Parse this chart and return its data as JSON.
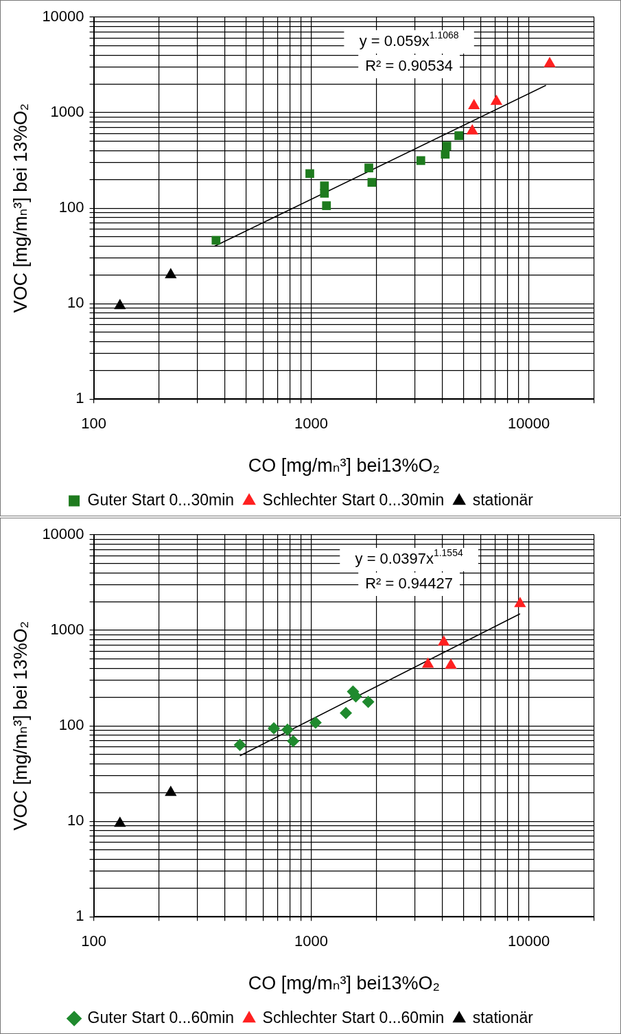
{
  "chart_data": [
    {
      "type": "scatter",
      "xlabel": "CO [mg/mₙ³] bei13%O₂",
      "ylabel": "VOC [mg/mₙ³] bei 13%O₂",
      "log": "xy",
      "grid": true,
      "legend": "bottom",
      "xlim": [
        100,
        20000
      ],
      "ylim": [
        1,
        10000
      ],
      "xticks": [
        100,
        {
          "value": 200,
          "label": null
        },
        {
          "value": 300,
          "label": null
        },
        {
          "value": 400,
          "label": null
        },
        {
          "value": 500,
          "label": null
        },
        {
          "value": 600,
          "label": null
        },
        {
          "value": 700,
          "label": null
        },
        {
          "value": 800,
          "label": null
        },
        {
          "value": 900,
          "label": null
        },
        1000,
        {
          "value": 2000,
          "label": null
        },
        {
          "value": 3000,
          "label": null
        },
        {
          "value": 4000,
          "label": null
        },
        {
          "value": 5000,
          "label": null
        },
        {
          "value": 6000,
          "label": null
        },
        {
          "value": 7000,
          "label": null
        },
        {
          "value": 8000,
          "label": null
        },
        {
          "value": 9000,
          "label": null
        },
        10000,
        {
          "value": 20000,
          "label": null
        }
      ],
      "yticks": [
        1,
        {
          "value": 2,
          "label": null
        },
        {
          "value": 3,
          "label": null
        },
        {
          "value": 4,
          "label": null
        },
        {
          "value": 5,
          "label": null
        },
        {
          "value": 6,
          "label": null
        },
        {
          "value": 7,
          "label": null
        },
        {
          "value": 8,
          "label": null
        },
        {
          "value": 9,
          "label": null
        },
        10,
        {
          "value": 20,
          "label": null
        },
        {
          "value": 30,
          "label": null
        },
        {
          "value": 40,
          "label": null
        },
        {
          "value": 50,
          "label": null
        },
        {
          "value": 60,
          "label": null
        },
        {
          "value": 70,
          "label": null
        },
        {
          "value": 80,
          "label": null
        },
        {
          "value": 90,
          "label": null
        },
        100,
        {
          "value": 200,
          "label": null
        },
        {
          "value": 300,
          "label": null
        },
        {
          "value": 400,
          "label": null
        },
        {
          "value": 500,
          "label": null
        },
        {
          "value": 600,
          "label": null
        },
        {
          "value": 700,
          "label": null
        },
        {
          "value": 800,
          "label": null
        },
        {
          "value": 900,
          "label": null
        },
        1000,
        {
          "value": 2000,
          "label": null
        },
        {
          "value": 3000,
          "label": null
        },
        {
          "value": 4000,
          "label": null
        },
        {
          "value": 5000,
          "label": null
        },
        {
          "value": 6000,
          "label": null
        },
        {
          "value": 7000,
          "label": null
        },
        {
          "value": 8000,
          "label": null
        },
        {
          "value": 9000,
          "label": null
        },
        10000
      ],
      "annotations": [
        "y = 0.059x$^{1.1068}$",
        "R² = 0.90534"
      ],
      "series": [
        {
          "name": "Guter Start 0...30min",
          "color": "#1e7b1e",
          "marker": "square",
          "x": [
            365,
            985,
            1150,
            1150,
            1175,
            1840,
            1900,
            3190,
            4130,
            4200,
            4770
          ],
          "values": [
            46,
            230,
            171,
            143,
            106,
            263,
            186,
            315,
            366,
            447,
            573
          ]
        },
        {
          "name": "Schlechter Start 0...30min",
          "color": "#ff2020",
          "marker": "triangle",
          "x": [
            5600,
            5500,
            7100,
            12480
          ],
          "values": [
            1180,
            643,
            1310,
            3250
          ]
        },
        {
          "name": "stationär",
          "color": "#000000",
          "marker": "triangle",
          "x": [
            132,
            226
          ],
          "values": [
            9.5,
            20
          ]
        },
        {
          "type": "line",
          "color": "#000000",
          "marker": "none",
          "line_style": "solid",
          "x": [
            360,
            12000
          ],
          "values": [
            40,
            1930
          ]
        }
      ]
    },
    {
      "type": "scatter",
      "xlabel": "CO [mg/mₙ³] bei13%O₂",
      "ylabel": "VOC [mg/mₙ³] bei 13%O₂",
      "log": "xy",
      "grid": true,
      "legend": "bottom",
      "xlim": [
        100,
        20000
      ],
      "ylim": [
        1,
        10000
      ],
      "xticks": [
        100,
        {
          "value": 200,
          "label": null
        },
        {
          "value": 300,
          "label": null
        },
        {
          "value": 400,
          "label": null
        },
        {
          "value": 500,
          "label": null
        },
        {
          "value": 600,
          "label": null
        },
        {
          "value": 700,
          "label": null
        },
        {
          "value": 800,
          "label": null
        },
        {
          "value": 900,
          "label": null
        },
        1000,
        {
          "value": 2000,
          "label": null
        },
        {
          "value": 3000,
          "label": null
        },
        {
          "value": 4000,
          "label": null
        },
        {
          "value": 5000,
          "label": null
        },
        {
          "value": 6000,
          "label": null
        },
        {
          "value": 7000,
          "label": null
        },
        {
          "value": 8000,
          "label": null
        },
        {
          "value": 9000,
          "label": null
        },
        10000,
        {
          "value": 20000,
          "label": null
        }
      ],
      "yticks": [
        1,
        {
          "value": 2,
          "label": null
        },
        {
          "value": 3,
          "label": null
        },
        {
          "value": 4,
          "label": null
        },
        {
          "value": 5,
          "label": null
        },
        {
          "value": 6,
          "label": null
        },
        {
          "value": 7,
          "label": null
        },
        {
          "value": 8,
          "label": null
        },
        {
          "value": 9,
          "label": null
        },
        10,
        {
          "value": 20,
          "label": null
        },
        {
          "value": 30,
          "label": null
        },
        {
          "value": 40,
          "label": null
        },
        {
          "value": 50,
          "label": null
        },
        {
          "value": 60,
          "label": null
        },
        {
          "value": 70,
          "label": null
        },
        {
          "value": 80,
          "label": null
        },
        {
          "value": 90,
          "label": null
        },
        100,
        {
          "value": 200,
          "label": null
        },
        {
          "value": 300,
          "label": null
        },
        {
          "value": 400,
          "label": null
        },
        {
          "value": 500,
          "label": null
        },
        {
          "value": 600,
          "label": null
        },
        {
          "value": 700,
          "label": null
        },
        {
          "value": 800,
          "label": null
        },
        {
          "value": 900,
          "label": null
        },
        1000,
        {
          "value": 2000,
          "label": null
        },
        {
          "value": 3000,
          "label": null
        },
        {
          "value": 4000,
          "label": null
        },
        {
          "value": 5000,
          "label": null
        },
        {
          "value": 6000,
          "label": null
        },
        {
          "value": 7000,
          "label": null
        },
        {
          "value": 8000,
          "label": null
        },
        {
          "value": 9000,
          "label": null
        },
        10000
      ],
      "annotations": [
        "y = 0.0397x$^{1.1554}$",
        "R² = 0.94427"
      ],
      "series": [
        {
          "name": "Guter Start 0...60min",
          "color": "#1f8a2e",
          "marker": "diamond",
          "x": [
            470,
            673,
            778,
            826,
            1047,
            1443,
            1556,
            1603,
            1828
          ],
          "values": [
            63,
            94,
            91,
            69,
            108,
            136,
            228,
            203,
            178
          ]
        },
        {
          "name": "Schlechter Start 0...60min",
          "color": "#ff2020",
          "marker": "triangle",
          "x": [
            3440,
            4065,
            4385,
            9120
          ],
          "values": [
            441,
            751,
            430,
            1900
          ]
        },
        {
          "name": "stationär",
          "color": "#000000",
          "marker": "triangle",
          "x": [
            132,
            226
          ],
          "values": [
            9.5,
            20
          ]
        },
        {
          "type": "line",
          "color": "#000000",
          "marker": "none",
          "line_style": "solid",
          "x": [
            470,
            9120
          ],
          "values": [
            48.6,
            1490
          ]
        }
      ]
    }
  ]
}
